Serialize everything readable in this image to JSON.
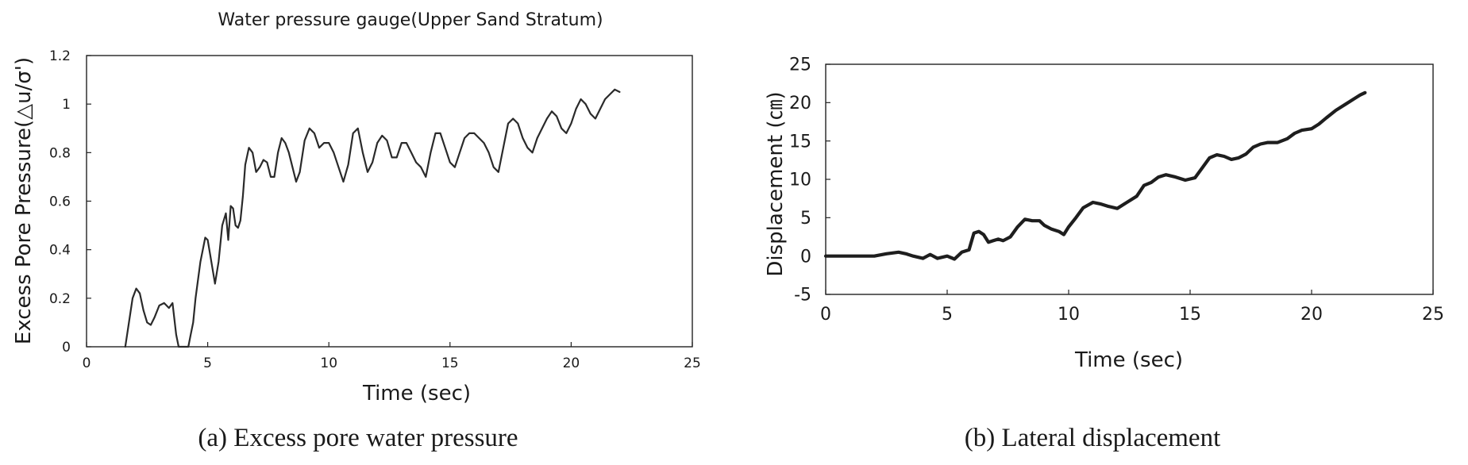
{
  "chart_data": [
    {
      "type": "line",
      "title": "Water pressure gauge(Upper Sand Stratum)",
      "xlabel": "Time (sec)",
      "ylabel": "Excess Pore Pressure(△u/σ')",
      "caption": "(a) Excess pore water pressure",
      "xlim": [
        0,
        25
      ],
      "ylim": [
        0,
        1.2
      ],
      "x_ticks": [
        "0",
        "5",
        "10",
        "15",
        "20",
        "25"
      ],
      "y_ticks": [
        "0",
        "0.2",
        "0.4",
        "0.6",
        "0.8",
        "1",
        "1.2"
      ],
      "grid": false,
      "series": [
        {
          "x": [
            1.6,
            1.75,
            1.9,
            2.05,
            2.2,
            2.35,
            2.5,
            2.65,
            2.8,
            3.0,
            3.2,
            3.4,
            3.55,
            3.7,
            3.8,
            3.9,
            4.2,
            4.3,
            4.4,
            4.5,
            4.7,
            4.9,
            5.0,
            5.1,
            5.3,
            5.45,
            5.6,
            5.75,
            5.85,
            5.95,
            6.05,
            6.15,
            6.25,
            6.35,
            6.45,
            6.55,
            6.7,
            6.85,
            7.0,
            7.15,
            7.3,
            7.45,
            7.6,
            7.75,
            7.9,
            8.05,
            8.2,
            8.35,
            8.5,
            8.65,
            8.8,
            9.0,
            9.2,
            9.4,
            9.6,
            9.8,
            10.0,
            10.2,
            10.4,
            10.6,
            10.8,
            11.0,
            11.2,
            11.4,
            11.6,
            11.8,
            12.0,
            12.2,
            12.4,
            12.6,
            12.8,
            13.0,
            13.2,
            13.4,
            13.6,
            13.8,
            14.0,
            14.2,
            14.4,
            14.6,
            14.8,
            15.0,
            15.2,
            15.4,
            15.6,
            15.8,
            16.0,
            16.2,
            16.4,
            16.6,
            16.8,
            17.0,
            17.2,
            17.4,
            17.6,
            17.8,
            18.0,
            18.2,
            18.4,
            18.6,
            18.8,
            19.0,
            19.2,
            19.4,
            19.6,
            19.8,
            20.0,
            20.2,
            20.4,
            20.6,
            20.8,
            21.0,
            21.2,
            21.4,
            21.6,
            21.8,
            22.0
          ],
          "y": [
            0.0,
            0.1,
            0.2,
            0.24,
            0.22,
            0.15,
            0.1,
            0.09,
            0.12,
            0.17,
            0.18,
            0.16,
            0.18,
            0.05,
            0.0,
            0.0,
            0.0,
            0.05,
            0.1,
            0.2,
            0.35,
            0.45,
            0.44,
            0.38,
            0.26,
            0.35,
            0.5,
            0.55,
            0.44,
            0.58,
            0.57,
            0.5,
            0.49,
            0.52,
            0.62,
            0.75,
            0.82,
            0.8,
            0.72,
            0.74,
            0.77,
            0.76,
            0.7,
            0.7,
            0.8,
            0.86,
            0.84,
            0.8,
            0.74,
            0.68,
            0.72,
            0.85,
            0.9,
            0.88,
            0.82,
            0.84,
            0.84,
            0.8,
            0.74,
            0.68,
            0.75,
            0.88,
            0.9,
            0.8,
            0.72,
            0.76,
            0.84,
            0.87,
            0.85,
            0.78,
            0.78,
            0.84,
            0.84,
            0.8,
            0.76,
            0.74,
            0.7,
            0.8,
            0.88,
            0.88,
            0.82,
            0.76,
            0.74,
            0.8,
            0.86,
            0.88,
            0.88,
            0.86,
            0.84,
            0.8,
            0.74,
            0.72,
            0.82,
            0.92,
            0.94,
            0.92,
            0.86,
            0.82,
            0.8,
            0.86,
            0.9,
            0.94,
            0.97,
            0.95,
            0.9,
            0.88,
            0.92,
            0.98,
            1.02,
            1.0,
            0.96,
            0.94,
            0.98,
            1.02,
            1.04,
            1.06,
            1.05
          ]
        }
      ]
    },
    {
      "type": "line",
      "xlabel": "Time (sec)",
      "ylabel": "Displacement (㎝)",
      "caption": "(b) Lateral displacement",
      "xlim": [
        0,
        25
      ],
      "ylim": [
        -5,
        25
      ],
      "x_ticks": [
        "0",
        "5",
        "10",
        "15",
        "20",
        "25"
      ],
      "y_ticks": [
        "25",
        "20",
        "15",
        "10",
        "5",
        "0",
        "-5"
      ],
      "grid": false,
      "series": [
        {
          "x": [
            0,
            1.0,
            2.0,
            2.5,
            3.0,
            3.3,
            3.6,
            4.0,
            4.3,
            4.6,
            5.0,
            5.3,
            5.6,
            5.9,
            6.1,
            6.3,
            6.5,
            6.7,
            6.9,
            7.1,
            7.3,
            7.6,
            7.9,
            8.2,
            8.5,
            8.8,
            9.0,
            9.3,
            9.6,
            9.8,
            10.0,
            10.3,
            10.6,
            11.0,
            11.3,
            11.6,
            12.0,
            12.4,
            12.8,
            13.1,
            13.4,
            13.7,
            14.0,
            14.4,
            14.8,
            15.2,
            15.5,
            15.8,
            16.1,
            16.4,
            16.7,
            17.0,
            17.3,
            17.6,
            17.9,
            18.2,
            18.6,
            19.0,
            19.3,
            19.6,
            20.0,
            20.3,
            20.6,
            21.0,
            21.4,
            21.8,
            22.0,
            22.2
          ],
          "y": [
            0.0,
            0.0,
            0.0,
            0.3,
            0.5,
            0.3,
            0.0,
            -0.3,
            0.2,
            -0.3,
            0.0,
            -0.4,
            0.5,
            0.8,
            3.0,
            3.2,
            2.8,
            1.8,
            2.0,
            2.2,
            2.0,
            2.5,
            3.8,
            4.8,
            4.6,
            4.6,
            4.0,
            3.5,
            3.2,
            2.8,
            3.8,
            5.0,
            6.3,
            7.0,
            6.8,
            6.5,
            6.2,
            7.0,
            7.8,
            9.2,
            9.6,
            10.3,
            10.6,
            10.3,
            9.9,
            10.2,
            11.5,
            12.8,
            13.2,
            13.0,
            12.6,
            12.8,
            13.3,
            14.2,
            14.6,
            14.8,
            14.8,
            15.3,
            16.0,
            16.4,
            16.6,
            17.2,
            18.0,
            19.0,
            19.8,
            20.6,
            21.0,
            21.3
          ]
        }
      ]
    }
  ]
}
